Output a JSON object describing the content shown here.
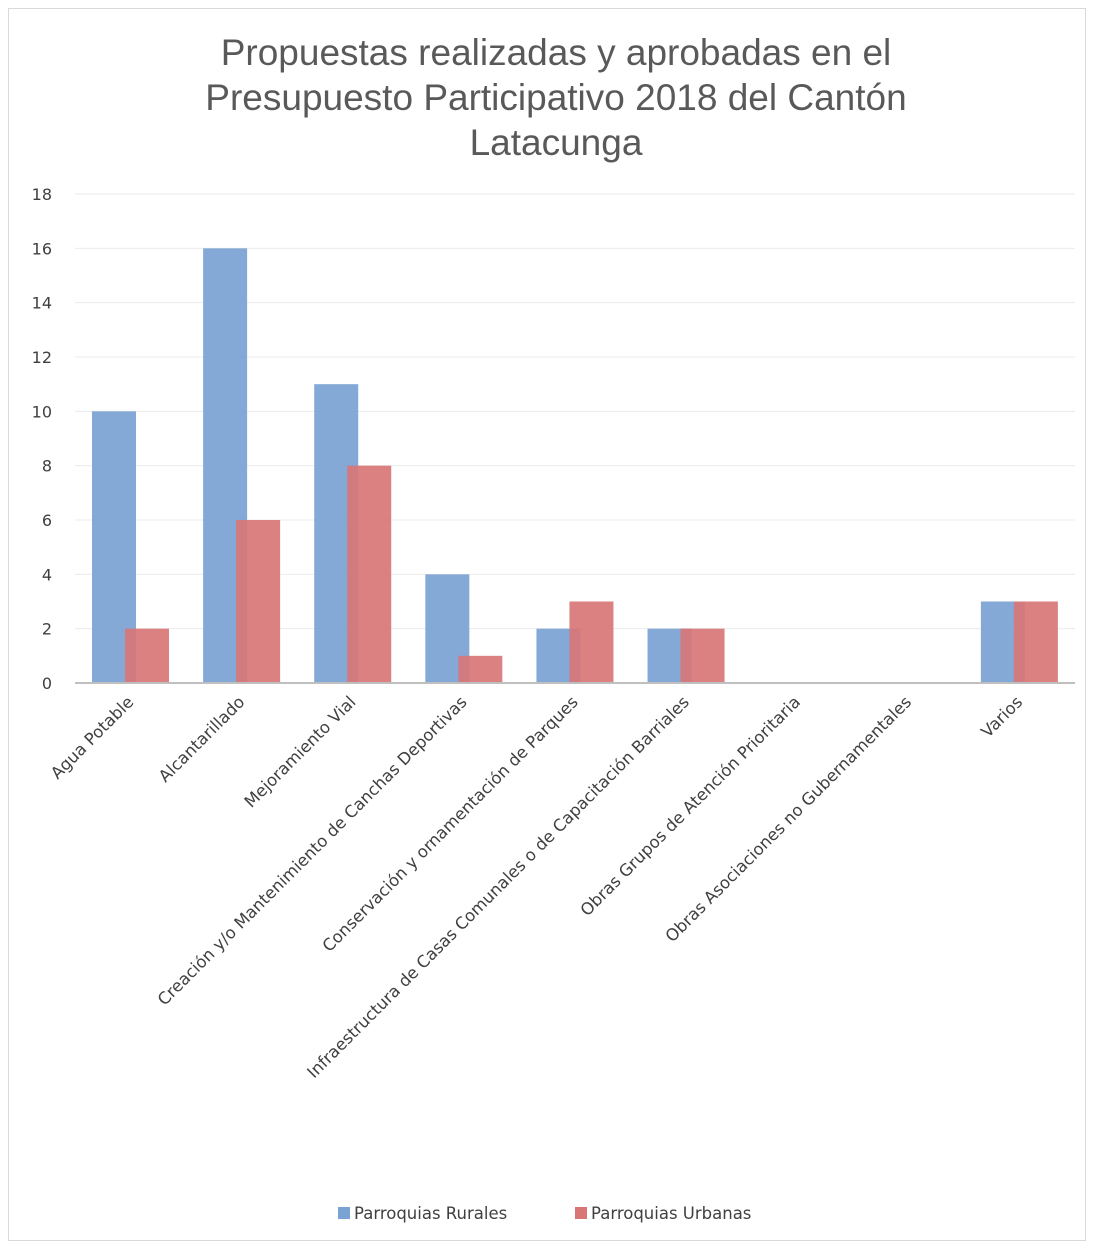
{
  "chart_data": {
    "type": "bar",
    "title_lines": [
      "Propuestas realizadas y aprobadas en el",
      "Presupuesto Participativo 2018 del Cantón",
      "Latacunga"
    ],
    "categories": [
      "Agua Potable",
      "Alcantarillado",
      "Mejoramiento Vial",
      "Creación y/o Mantenimiento de Canchas Deportivas",
      "Conservación y ornamentación de Parques",
      "Infraestructura de Casas Comunales o de Capacitación Barriales",
      "Obras Grupos de Atención Prioritaria",
      "Obras Asociaciones no Gubernamentales",
      "Varios"
    ],
    "series": [
      {
        "name": "Parroquias Rurales",
        "color": "#7aa2d2",
        "values": [
          10,
          16,
          11,
          4,
          2,
          2,
          0,
          0,
          3
        ]
      },
      {
        "name": "Parroquias Urbanas",
        "color": "#d87677",
        "values": [
          2,
          6,
          8,
          1,
          3,
          2,
          0,
          0,
          3
        ]
      }
    ],
    "ylim": [
      0,
      18
    ],
    "yticks": [
      "0",
      "2",
      "4",
      "6",
      "8",
      "10",
      "12",
      "14",
      "16",
      "18"
    ],
    "grid": true,
    "legend_position": "bottom"
  }
}
